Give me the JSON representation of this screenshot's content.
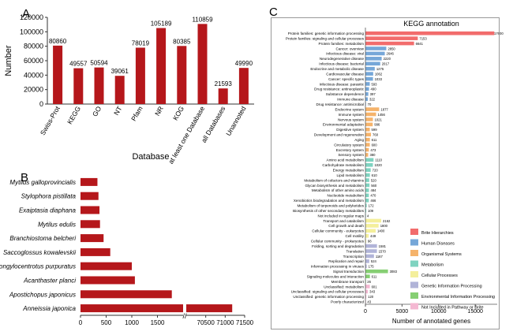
{
  "panels": {
    "a": {
      "letter": "A"
    },
    "b": {
      "letter": "B"
    },
    "c": {
      "letter": "C"
    }
  },
  "colors": {
    "bar_red": "#b5171b",
    "brite": "#f26c6c",
    "human_diseases": "#76a7d8",
    "organismal": "#f5b36b",
    "metabolism": "#7fd3c0",
    "cellular": "#f4ef9c",
    "genetic": "#b1b4d8",
    "environmental": "#86cf73",
    "not_included": "#f4b8d2"
  },
  "chart_data": [
    {
      "type": "bar",
      "panel": "A",
      "categories": [
        "Swiss-Prot",
        "KEGG",
        "GO",
        "NT",
        "Pfam",
        "NR",
        "KOG",
        "at least one Database",
        "all Databases",
        "Unannoted"
      ],
      "values": [
        80860,
        49557,
        50594,
        39061,
        78019,
        105189,
        80385,
        110859,
        21593,
        49990
      ],
      "value_labels": [
        "80860",
        "49557",
        "50594",
        "39061",
        "78019",
        "105189",
        "80385",
        "110859",
        "21593",
        "49990"
      ],
      "xlabel": "Database",
      "ylabel": "Number",
      "ylim": [
        0,
        120000
      ],
      "yticks": [
        "0",
        "20000",
        "40000",
        "60000",
        "80000",
        "100000",
        "120000"
      ]
    },
    {
      "type": "bar",
      "panel": "B",
      "orientation": "horizontal",
      "categories": [
        "Mytilus galloprovincialis",
        "Stylophora pistillata",
        "Exaiptasia diaphana",
        "Mytilus edulis",
        "Branchiostoma belcheri",
        "Saccoglossus kowalevskii",
        "Strongylocentrotus purpuratus",
        "Acanthaster planci",
        "Apostichopus japonicus",
        "Anneissia japonica"
      ],
      "values": [
        330,
        350,
        370,
        380,
        450,
        580,
        1000,
        1060,
        1780,
        71180
      ],
      "broken_axis": {
        "segment1": [
          0,
          2000
        ],
        "segment2": [
          70000,
          71500
        ]
      },
      "xticks1": [
        "0",
        "500",
        "1000",
        "1500"
      ],
      "xticks2": [
        "70500",
        "71000",
        "71500"
      ]
    },
    {
      "type": "bar",
      "panel": "C",
      "orientation": "horizontal",
      "title": "KEGG annotation",
      "xlabel": "Number of annotated genes",
      "xlim": [
        0,
        18000
      ],
      "xticks": [
        "0",
        "5000",
        "10000",
        "15000"
      ],
      "categories": [
        "Protein families: genetic information processing",
        "Protein families: signaling and cellular processes",
        "Protein families: metabolism",
        "Cancer: overview",
        "Infectious disease: viral",
        "Neurodegenerative disease",
        "Infectious disease: bacterial",
        "Endocrine and metabolic disease",
        "Cardiovascular disease",
        "Cancer: specific types",
        "Infectious disease: parasitic",
        "Drug resistance: antineoplastic",
        "Substance dependence",
        "Immune disease",
        "Drug resistance: antimicrobial",
        "Endocrine system",
        "Immune system",
        "Nervous system",
        "Environmental adaptation",
        "Digestive system",
        "Development and regeneration",
        "Aging",
        "Circulatory system",
        "Excretory system",
        "Sensory system",
        "Amino acid metabolism",
        "Carbohydrate metabolism",
        "Energy metabolism",
        "Lipid metabolism",
        "Metabolism of cofactors and vitamins",
        "Glycan biosynthesis and metabolism",
        "Metabolism of other amino acids",
        "Nucleotide metabolism",
        "Xenobiotics biodegradation and metabolism",
        "Metabolism of terpenoids and polyketides",
        "Biosynthesis of other secondary metabolites",
        "Not included in regular maps",
        "Transport and catabolism",
        "Cell growth and death",
        "Cellular community - eukaryotes",
        "Cell motility",
        "Cellular community - prokaryotes",
        "Folding, sorting and degradation",
        "Translation",
        "Transcription",
        "Replication and repair",
        "Information processing in viruses",
        "Signal transduction",
        "Signaling molecules and interaction",
        "Membrane transport",
        "Unclassified: metabolism",
        "Unclassified: signaling and cellular processes",
        "Unclassified: genetic information processing",
        "Poorly characterized"
      ],
      "value_labels": [
        "17600",
        "7153",
        "6641",
        "2850",
        "2646",
        "2220",
        "2017",
        "1275",
        "1062",
        "1033",
        "593",
        "490",
        "397",
        "322",
        "70",
        "1877",
        "1456",
        "1021",
        "996",
        "599",
        "760",
        "611",
        "600",
        "473",
        "380",
        "1110",
        "1020",
        "720",
        "610",
        "520",
        "560",
        "484",
        "470",
        "466",
        "172",
        "109",
        "4",
        "2162",
        "1800",
        "1400",
        "449",
        "98",
        "1581",
        "1570",
        "1167",
        "524",
        "175",
        "3083",
        "611",
        "26",
        "601",
        "343",
        "120",
        "43"
      ],
      "values": [
        17600,
        7153,
        6641,
        2850,
        2646,
        2220,
        2017,
        1275,
        1062,
        1033,
        593,
        490,
        397,
        322,
        70,
        1877,
        1456,
        1021,
        996,
        599,
        760,
        611,
        600,
        473,
        380,
        1110,
        1020,
        720,
        610,
        520,
        560,
        484,
        470,
        466,
        172,
        109,
        4,
        2162,
        1800,
        1400,
        449,
        98,
        1581,
        1570,
        1167,
        524,
        175,
        3083,
        611,
        26,
        601,
        343,
        120,
        43
      ],
      "groups": [
        0,
        0,
        0,
        1,
        1,
        1,
        1,
        1,
        1,
        1,
        1,
        1,
        1,
        1,
        1,
        2,
        2,
        2,
        2,
        2,
        2,
        2,
        2,
        2,
        2,
        3,
        3,
        3,
        3,
        3,
        3,
        3,
        3,
        3,
        3,
        3,
        3,
        4,
        4,
        4,
        4,
        4,
        5,
        5,
        5,
        5,
        5,
        6,
        6,
        6,
        7,
        7,
        7,
        7
      ],
      "legend": [
        {
          "label": "Brite Hierarchies",
          "color": "#f26c6c"
        },
        {
          "label": "Human Diseases",
          "color": "#76a7d8"
        },
        {
          "label": "Organismal Systems",
          "color": "#f5b36b"
        },
        {
          "label": "Metabolism",
          "color": "#7fd3c0"
        },
        {
          "label": "Cellular Processes",
          "color": "#f4ef9c"
        },
        {
          "label": "Genetic Information Processing",
          "color": "#b1b4d8"
        },
        {
          "label": "Environmental Information Processing",
          "color": "#86cf73"
        },
        {
          "label": "Not Included in Pathway or Brite",
          "color": "#f4b8d2"
        }
      ],
      "legend_position": "right"
    }
  ]
}
